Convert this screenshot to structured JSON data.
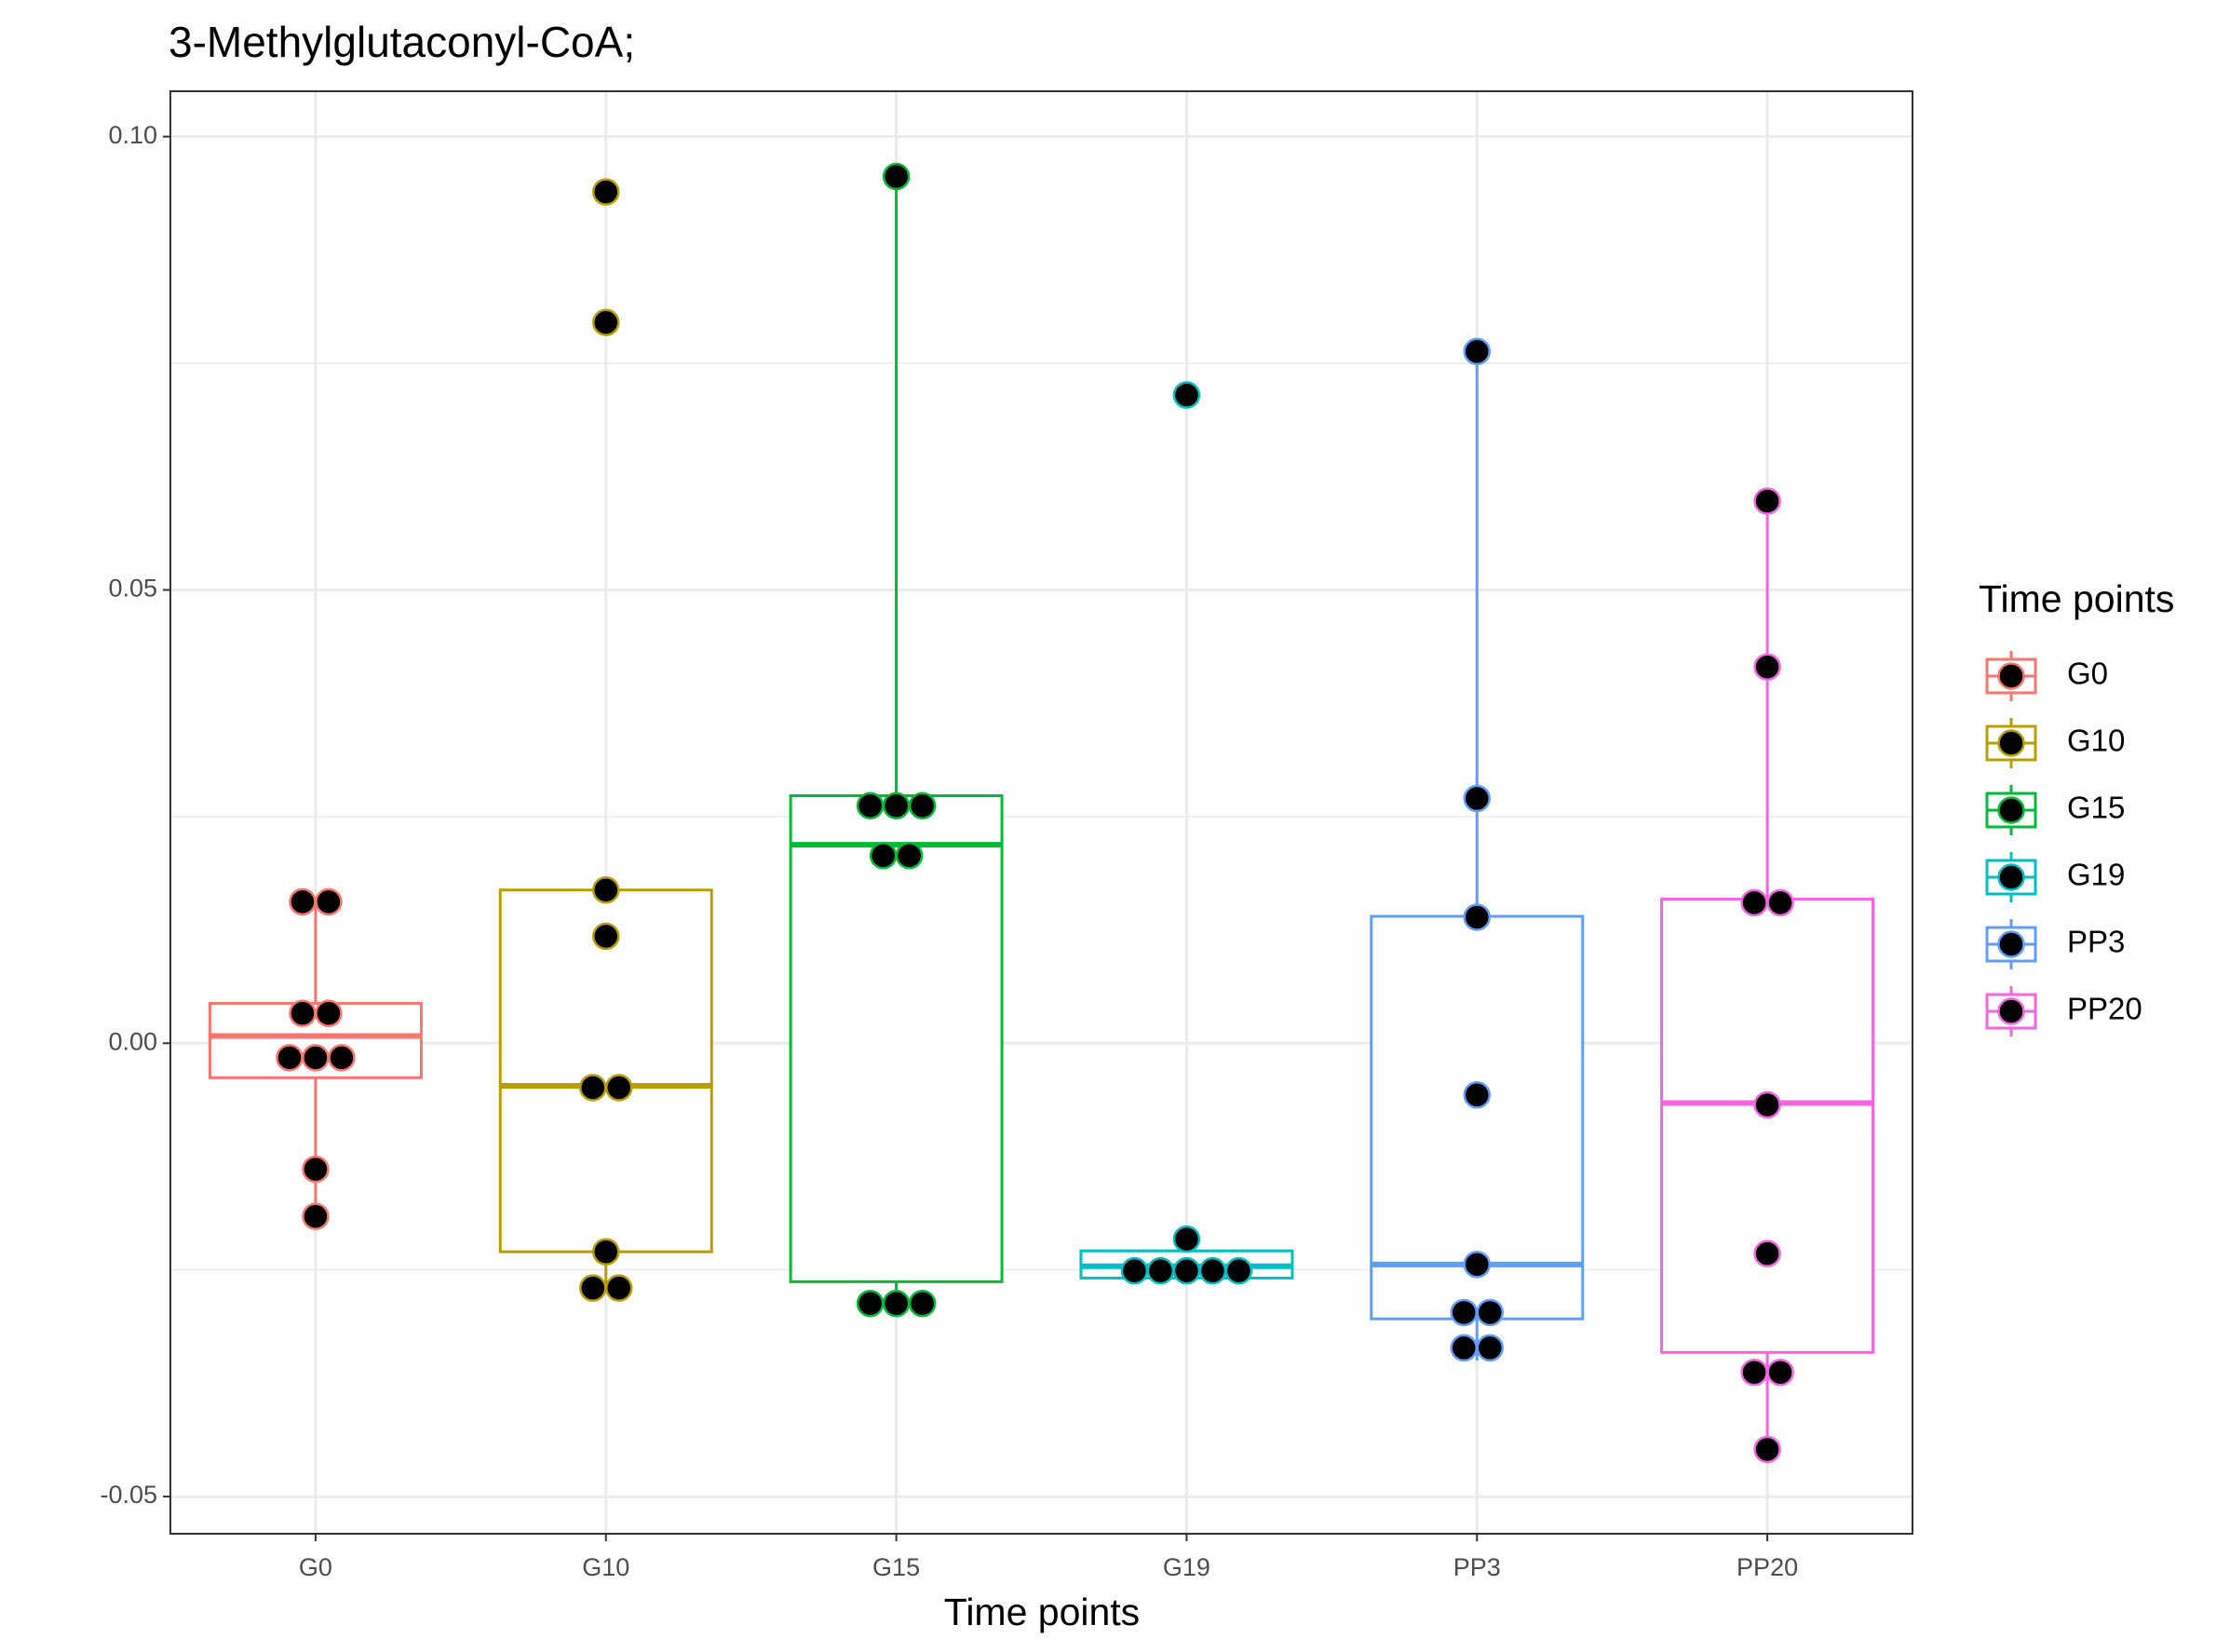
{
  "chart_data": {
    "type": "box",
    "title": "3-Methylglutaconyl-CoA;",
    "x_label": "Time points",
    "legend_title": "Time points",
    "categories": [
      "G0",
      "G10",
      "G15",
      "G19",
      "PP3",
      "PP20"
    ],
    "ylim": [
      -0.0541,
      0.105
    ],
    "yticks": [
      {
        "value": -0.05,
        "label": "-0.05"
      },
      {
        "value": 0,
        "label": "0.00"
      },
      {
        "value": 0.05,
        "label": "0.05"
      },
      {
        "value": 0.1,
        "label": "0.10"
      }
    ],
    "grid": true,
    "legend_position": "right",
    "series": [
      {
        "name": "G0",
        "color": "#F8766D",
        "box": {
          "lower": -0.0191,
          "q1": -0.0038,
          "median": 0.0008,
          "q3": 0.0044,
          "upper": 0.0156
        },
        "points": [
          0.0156,
          0.0156,
          0.0033,
          0.0033,
          -0.0016,
          -0.0016,
          -0.0016,
          -0.0139,
          -0.0191
        ]
      },
      {
        "name": "G10",
        "color": "#B79F00",
        "box": {
          "lower": -0.027,
          "q1": -0.023,
          "median": -0.0047,
          "q3": 0.0169,
          "upper": 0.0169
        },
        "points": [
          0.0939,
          0.0795,
          0.0169,
          0.0118,
          -0.0049,
          -0.0049,
          -0.023,
          -0.027,
          -0.027
        ]
      },
      {
        "name": "G15",
        "color": "#00BA38",
        "box": {
          "lower": -0.0287,
          "q1": -0.0263,
          "median": 0.0219,
          "q3": 0.0273,
          "upper": 0.0956
        },
        "points": [
          0.0956,
          0.0262,
          0.0262,
          0.0262,
          0.0207,
          0.0207,
          -0.0287,
          -0.0287,
          -0.0287
        ]
      },
      {
        "name": "G19",
        "color": "#00BFC4",
        "box": {
          "lower": -0.0259,
          "q1": -0.0259,
          "median": -0.0246,
          "q3": -0.0229,
          "upper": -0.0216
        },
        "points": [
          0.0715,
          -0.0216,
          -0.0251,
          -0.0251,
          -0.0251,
          -0.0251,
          -0.0251
        ]
      },
      {
        "name": "PP3",
        "color": "#619CFF",
        "box": {
          "lower": -0.035,
          "q1": -0.0304,
          "median": -0.0244,
          "q3": 0.014,
          "upper": 0.0763
        },
        "points": [
          0.0763,
          0.027,
          0.0139,
          -0.0057,
          -0.0244,
          -0.0297,
          -0.0297,
          -0.0336,
          -0.0336
        ]
      },
      {
        "name": "PP20",
        "color": "#F564E3",
        "box": {
          "lower": -0.0448,
          "q1": -0.0341,
          "median": -0.0066,
          "q3": 0.0159,
          "upper": 0.0598
        },
        "points": [
          0.0598,
          0.0415,
          0.0155,
          0.0155,
          -0.0068,
          -0.0232,
          -0.0363,
          -0.0363,
          -0.0448
        ]
      }
    ]
  }
}
